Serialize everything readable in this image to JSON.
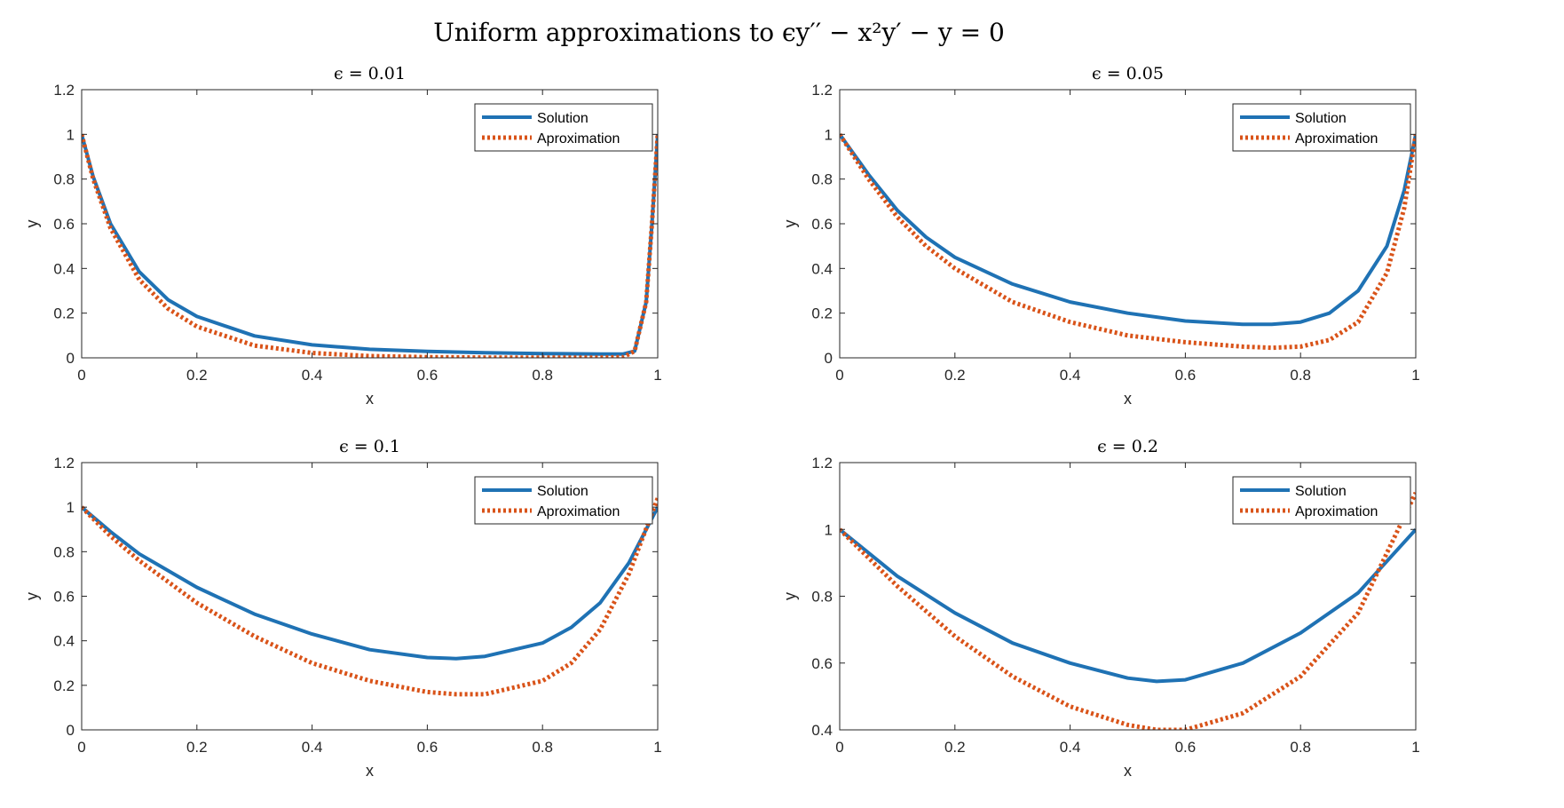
{
  "figure": {
    "title": "Uniform approximations to ϵy′′ − x²y′ − y = 0"
  },
  "colors": {
    "solution": "#1f72b4",
    "approximation": "#d95319",
    "axis": "#262626",
    "background": "#ffffff"
  },
  "chart_data": [
    {
      "type": "line",
      "title": "ϵ = 0.01",
      "xlabel": "x",
      "ylabel": "y",
      "xlim": [
        0,
        1
      ],
      "ylim": [
        0,
        1.2
      ],
      "xticks": [
        0,
        0.2,
        0.4,
        0.6,
        0.8,
        1
      ],
      "yticks": [
        0,
        0.2,
        0.4,
        0.6,
        0.8,
        1,
        1.2
      ],
      "grid": false,
      "legend_position": "top-right",
      "x": [
        0,
        0.02,
        0.05,
        0.1,
        0.15,
        0.2,
        0.3,
        0.4,
        0.5,
        0.6,
        0.7,
        0.8,
        0.9,
        0.94,
        0.96,
        0.98,
        0.99,
        1.0
      ],
      "series": [
        {
          "name": "Solution",
          "style": "solid",
          "values": [
            1.0,
            0.81,
            0.6,
            0.385,
            0.26,
            0.185,
            0.098,
            0.058,
            0.038,
            0.029,
            0.023,
            0.019,
            0.017,
            0.017,
            0.03,
            0.25,
            0.6,
            1.0
          ]
        },
        {
          "name": "Aproximation",
          "style": "dotted",
          "values": [
            1.0,
            0.8,
            0.58,
            0.35,
            0.22,
            0.14,
            0.055,
            0.022,
            0.008,
            0.003,
            0.001,
            0.001,
            0.001,
            0.003,
            0.03,
            0.25,
            0.6,
            1.0
          ]
        }
      ]
    },
    {
      "type": "line",
      "title": "ϵ = 0.05",
      "xlabel": "x",
      "ylabel": "y",
      "xlim": [
        0,
        1
      ],
      "ylim": [
        0,
        1.2
      ],
      "xticks": [
        0,
        0.2,
        0.4,
        0.6,
        0.8,
        1
      ],
      "yticks": [
        0,
        0.2,
        0.4,
        0.6,
        0.8,
        1,
        1.2
      ],
      "grid": false,
      "legend_position": "top-right",
      "x": [
        0,
        0.05,
        0.1,
        0.15,
        0.2,
        0.3,
        0.4,
        0.5,
        0.6,
        0.7,
        0.75,
        0.8,
        0.85,
        0.9,
        0.95,
        0.98,
        1.0
      ],
      "series": [
        {
          "name": "Solution",
          "style": "solid",
          "values": [
            1.0,
            0.82,
            0.66,
            0.54,
            0.45,
            0.33,
            0.25,
            0.2,
            0.165,
            0.15,
            0.15,
            0.16,
            0.2,
            0.3,
            0.5,
            0.75,
            1.0
          ]
        },
        {
          "name": "Aproximation",
          "style": "dotted",
          "values": [
            1.0,
            0.8,
            0.63,
            0.5,
            0.4,
            0.25,
            0.16,
            0.1,
            0.07,
            0.05,
            0.045,
            0.05,
            0.08,
            0.16,
            0.38,
            0.67,
            1.0
          ]
        }
      ]
    },
    {
      "type": "line",
      "title": "ϵ = 0.1",
      "xlabel": "x",
      "ylabel": "y",
      "xlim": [
        0,
        1
      ],
      "ylim": [
        0,
        1.2
      ],
      "xticks": [
        0,
        0.2,
        0.4,
        0.6,
        0.8,
        1
      ],
      "yticks": [
        0,
        0.2,
        0.4,
        0.6,
        0.8,
        1,
        1.2
      ],
      "grid": false,
      "legend_position": "top-right",
      "x": [
        0,
        0.05,
        0.1,
        0.2,
        0.3,
        0.4,
        0.5,
        0.6,
        0.65,
        0.7,
        0.8,
        0.85,
        0.9,
        0.95,
        1.0
      ],
      "series": [
        {
          "name": "Solution",
          "style": "solid",
          "values": [
            1.0,
            0.89,
            0.79,
            0.64,
            0.52,
            0.43,
            0.36,
            0.325,
            0.32,
            0.33,
            0.39,
            0.46,
            0.57,
            0.75,
            1.0
          ]
        },
        {
          "name": "Aproximation",
          "style": "dotted",
          "values": [
            1.0,
            0.87,
            0.76,
            0.57,
            0.42,
            0.3,
            0.22,
            0.17,
            0.16,
            0.16,
            0.22,
            0.3,
            0.45,
            0.7,
            1.04
          ]
        }
      ]
    },
    {
      "type": "line",
      "title": "ϵ = 0.2",
      "xlabel": "x",
      "ylabel": "y",
      "xlim": [
        0,
        1
      ],
      "ylim": [
        0.4,
        1.2
      ],
      "xticks": [
        0,
        0.2,
        0.4,
        0.6,
        0.8,
        1
      ],
      "yticks": [
        0.4,
        0.6,
        0.8,
        1,
        1.2
      ],
      "grid": false,
      "legend_position": "top-right",
      "x": [
        0,
        0.1,
        0.2,
        0.3,
        0.4,
        0.5,
        0.55,
        0.6,
        0.7,
        0.8,
        0.9,
        1.0
      ],
      "series": [
        {
          "name": "Solution",
          "style": "solid",
          "values": [
            1.0,
            0.86,
            0.75,
            0.66,
            0.6,
            0.555,
            0.545,
            0.55,
            0.6,
            0.69,
            0.81,
            1.0
          ]
        },
        {
          "name": "Aproximation",
          "style": "dotted",
          "values": [
            1.0,
            0.83,
            0.68,
            0.56,
            0.47,
            0.415,
            0.4,
            0.4,
            0.45,
            0.56,
            0.75,
            1.11
          ]
        }
      ]
    }
  ]
}
